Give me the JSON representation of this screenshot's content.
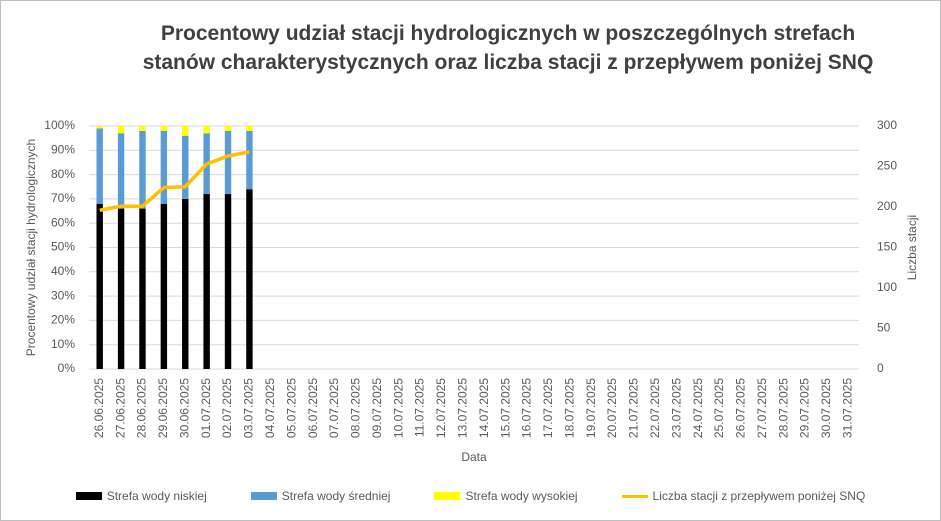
{
  "chart_data": {
    "type": "stacked-bar-line",
    "title": "Procentowy udział stacji hydrologicznych w poszczególnych strefach stanów charakterystycznych oraz liczba stacji z przepływem poniżej SNQ",
    "xlabel": "Data",
    "ylabel": "Procentowy udział stacji hydrologicznych",
    "y2label": "Liczba stacji",
    "categories": [
      "26.06.2025",
      "27.06.2025",
      "28.06.2025",
      "29.06.2025",
      "30.06.2025",
      "01.07.2025",
      "02.07.2025",
      "03.07.2025",
      "04.07.2025",
      "05.07.2025",
      "06.07.2025",
      "07.07.2025",
      "08.07.2025",
      "09.07.2025",
      "10.07.2025",
      "11.07.2025",
      "12.07.2025",
      "13.07.2025",
      "14.07.2025",
      "15.07.2025",
      "16.07.2025",
      "17.07.2025",
      "18.07.2025",
      "19.07.2025",
      "20.07.2025",
      "21.07.2025",
      "22.07.2025",
      "23.07.2025",
      "24.07.2025",
      "25.07.2025",
      "26.07.2025",
      "27.07.2025",
      "28.07.2025",
      "29.07.2025",
      "30.07.2025",
      "31.07.2025"
    ],
    "series": [
      {
        "name": "Strefa wody niskiej",
        "color": "#000000",
        "kind": "bar",
        "values": [
          68,
          66,
          66,
          68,
          70,
          72,
          72,
          74,
          null,
          null,
          null,
          null,
          null,
          null,
          null,
          null,
          null,
          null,
          null,
          null,
          null,
          null,
          null,
          null,
          null,
          null,
          null,
          null,
          null,
          null,
          null,
          null,
          null,
          null,
          null,
          null
        ]
      },
      {
        "name": "Strefa wody średniej",
        "color": "#5b9bd5",
        "kind": "bar",
        "values": [
          31,
          31,
          32,
          30,
          26,
          25,
          26,
          24,
          null,
          null,
          null,
          null,
          null,
          null,
          null,
          null,
          null,
          null,
          null,
          null,
          null,
          null,
          null,
          null,
          null,
          null,
          null,
          null,
          null,
          null,
          null,
          null,
          null,
          null,
          null,
          null
        ]
      },
      {
        "name": "Strefa wody wysokiej",
        "color": "#ffff00",
        "kind": "bar",
        "values": [
          1,
          3,
          2,
          2,
          4,
          3,
          2,
          2,
          null,
          null,
          null,
          null,
          null,
          null,
          null,
          null,
          null,
          null,
          null,
          null,
          null,
          null,
          null,
          null,
          null,
          null,
          null,
          null,
          null,
          null,
          null,
          null,
          null,
          null,
          null,
          null
        ]
      },
      {
        "name": "Liczba stacji z przepływem poniżej SNQ",
        "color": "#ffc000",
        "kind": "line",
        "axis": "y2",
        "values": [
          196,
          201,
          201,
          224,
          225,
          253,
          263,
          268,
          null,
          null,
          null,
          null,
          null,
          null,
          null,
          null,
          null,
          null,
          null,
          null,
          null,
          null,
          null,
          null,
          null,
          null,
          null,
          null,
          null,
          null,
          null,
          null,
          null,
          null,
          null,
          null
        ]
      }
    ],
    "ylim": [
      0,
      100
    ],
    "yticks": [
      {
        "value": 0,
        "label": "0%"
      },
      {
        "value": 10,
        "label": "10%"
      },
      {
        "value": 20,
        "label": "20%"
      },
      {
        "value": 30,
        "label": "30%"
      },
      {
        "value": 40,
        "label": "40%"
      },
      {
        "value": 50,
        "label": "50%"
      },
      {
        "value": 60,
        "label": "60%"
      },
      {
        "value": 70,
        "label": "70%"
      },
      {
        "value": 80,
        "label": "80%"
      },
      {
        "value": 90,
        "label": "90%"
      },
      {
        "value": 100,
        "label": "100%"
      }
    ],
    "y2lim": [
      0,
      300
    ],
    "y2ticks": [
      0,
      50,
      100,
      150,
      200,
      250,
      300
    ],
    "grid": true,
    "legend": "bottom"
  }
}
